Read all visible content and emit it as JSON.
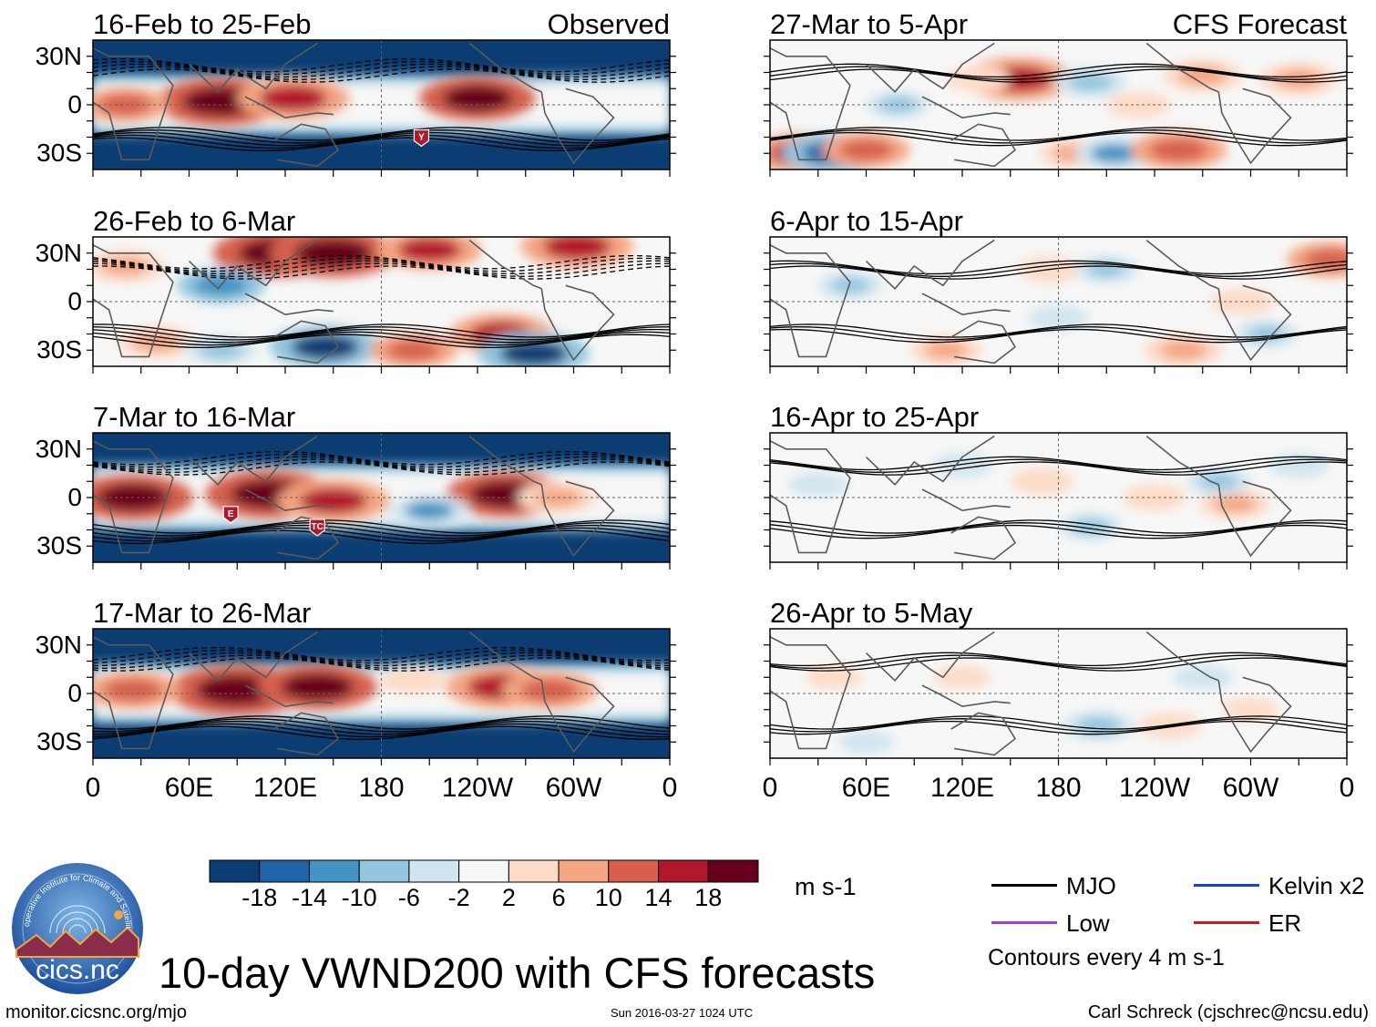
{
  "header": {
    "observed_label": "Observed",
    "forecast_label": "CFS Forecast"
  },
  "panels": {
    "observed": [
      {
        "title": "16-Feb to 25-Feb"
      },
      {
        "title": "26-Feb to 6-Mar"
      },
      {
        "title": "7-Mar to 16-Mar"
      },
      {
        "title": "17-Mar to 26-Mar"
      }
    ],
    "forecast": [
      {
        "title": "27-Mar to 5-Apr"
      },
      {
        "title": "6-Apr to 15-Apr"
      },
      {
        "title": "16-Apr to 25-Apr"
      },
      {
        "title": "26-Apr to 5-May"
      }
    ]
  },
  "axes": {
    "lat_ticks": [
      "30N",
      "0",
      "30S"
    ],
    "lon_ticks": [
      "0",
      "60E",
      "120E",
      "180",
      "120W",
      "60W",
      "0"
    ]
  },
  "markers": {
    "m1": "Y",
    "m2": "E",
    "m3": "TC"
  },
  "colorbar": {
    "labels": [
      "-18",
      "-14",
      "-10",
      "-6",
      "-2",
      "2",
      "6",
      "10",
      "14",
      "18"
    ],
    "colors": [
      "#0b3d73",
      "#1f63a8",
      "#4393c3",
      "#92c5de",
      "#d1e5f0",
      "#f7f7f7",
      "#fddbc7",
      "#f4a582",
      "#d6604d",
      "#b2182b",
      "#67001f"
    ],
    "units": "m s-1"
  },
  "legend": {
    "mjo": {
      "label": "MJO",
      "color": "#000000"
    },
    "kelvin": {
      "label": "Kelvin x2",
      "color": "#1f3fd0"
    },
    "low": {
      "label": "Low",
      "color": "#a040d8"
    },
    "er": {
      "label": "ER",
      "color": "#d01818"
    },
    "contour_note": "Contours every 4 m s-1"
  },
  "logo": {
    "text": "cics.nc",
    "ring_text": "Cooperative Institute for Climate and Satellites"
  },
  "title": "10-day VWND200 with CFS forecasts",
  "footer": {
    "url": "monitor.cicsnc.org/mjo",
    "date": "Sun 2016-03-27 1024 UTC",
    "author": "Carl Schreck (cjschrec@ncsu.edu)"
  },
  "chart_data": {
    "type": "heatmap",
    "variable": "200-hPa meridional wind (VWND200) anomaly, 10-day mean",
    "units": "m s-1",
    "x_range_lon": [
      0,
      360
    ],
    "y_range_lat": [
      -40,
      40
    ],
    "color_levels": [
      -18,
      -14,
      -10,
      -6,
      -2,
      2,
      6,
      10,
      14,
      18
    ],
    "panels": [
      {
        "title": "16-Feb to 25-Feb",
        "source": "Observed",
        "blobs": [
          {
            "lon": 80,
            "lat": 2,
            "value": 22
          },
          {
            "lon": 125,
            "lat": 4,
            "value": 18
          },
          {
            "lon": 240,
            "lat": 4,
            "value": 19
          },
          {
            "lon": 20,
            "lat": 0,
            "value": 12
          }
        ],
        "background": -20,
        "band_lat": [
          -14,
          14
        ]
      },
      {
        "title": "26-Feb to 6-Mar",
        "source": "Observed",
        "blobs": [
          {
            "lon": 115,
            "lat": 30,
            "value": 22
          },
          {
            "lon": 150,
            "lat": 30,
            "value": 22
          },
          {
            "lon": 210,
            "lat": 32,
            "value": 16
          },
          {
            "lon": 302,
            "lat": 34,
            "value": 18
          },
          {
            "lon": 145,
            "lat": -28,
            "value": -18
          },
          {
            "lon": 255,
            "lat": -20,
            "value": 16
          },
          {
            "lon": 275,
            "lat": -32,
            "value": -18
          },
          {
            "lon": 80,
            "lat": 10,
            "value": -12
          },
          {
            "lon": 40,
            "lat": -25,
            "value": 10
          },
          {
            "lon": 200,
            "lat": -30,
            "value": 12
          },
          {
            "lon": 20,
            "lat": 22,
            "value": 10
          },
          {
            "lon": 80,
            "lat": -30,
            "value": -8
          }
        ],
        "background": 0
      },
      {
        "title": "7-Mar to 16-Mar",
        "source": "Observed",
        "blobs": [
          {
            "lon": 25,
            "lat": 0,
            "value": 20
          },
          {
            "lon": 110,
            "lat": 2,
            "value": 22
          },
          {
            "lon": 150,
            "lat": -2,
            "value": 18
          },
          {
            "lon": 258,
            "lat": 2,
            "value": 20
          },
          {
            "lon": 210,
            "lat": -8,
            "value": -10
          },
          {
            "lon": 290,
            "lat": 0,
            "value": 10
          }
        ],
        "background": -20,
        "band_lat": [
          -16,
          16
        ]
      },
      {
        "title": "17-Mar to 26-Mar",
        "source": "Observed",
        "blobs": [
          {
            "lon": 90,
            "lat": 2,
            "value": 24
          },
          {
            "lon": 140,
            "lat": 4,
            "value": 20
          },
          {
            "lon": 25,
            "lat": 2,
            "value": 14
          },
          {
            "lon": 255,
            "lat": 4,
            "value": 18
          },
          {
            "lon": 285,
            "lat": 2,
            "value": 14
          },
          {
            "lon": 200,
            "lat": 8,
            "value": 6
          }
        ],
        "background": -20,
        "band_lat": [
          -14,
          14
        ]
      },
      {
        "title": "27-Mar to 5-Apr",
        "source": "CFS Forecast",
        "blobs": [
          {
            "lon": 155,
            "lat": 16,
            "value": 18
          },
          {
            "lon": 130,
            "lat": 16,
            "value": 6
          },
          {
            "lon": 200,
            "lat": 14,
            "value": -8
          },
          {
            "lon": 270,
            "lat": 18,
            "value": 10
          },
          {
            "lon": 330,
            "lat": 16,
            "value": 10
          },
          {
            "lon": 20,
            "lat": -30,
            "value": 16
          },
          {
            "lon": 40,
            "lat": -30,
            "value": -16
          },
          {
            "lon": 60,
            "lat": -28,
            "value": 12
          },
          {
            "lon": 190,
            "lat": -30,
            "value": 8
          },
          {
            "lon": 215,
            "lat": -30,
            "value": -10
          },
          {
            "lon": 255,
            "lat": -28,
            "value": 14
          },
          {
            "lon": 80,
            "lat": 0,
            "value": -6
          },
          {
            "lon": 230,
            "lat": 0,
            "value": 6
          }
        ],
        "background": 0
      },
      {
        "title": "6-Apr to 15-Apr",
        "source": "CFS Forecast",
        "blobs": [
          {
            "lon": 175,
            "lat": 20,
            "value": 6
          },
          {
            "lon": 210,
            "lat": 20,
            "value": -6
          },
          {
            "lon": 350,
            "lat": 26,
            "value": 12
          },
          {
            "lon": 295,
            "lat": 0,
            "value": 6
          },
          {
            "lon": 258,
            "lat": -30,
            "value": 10
          },
          {
            "lon": 110,
            "lat": -30,
            "value": 8
          },
          {
            "lon": 310,
            "lat": -20,
            "value": -6
          },
          {
            "lon": 50,
            "lat": 10,
            "value": -6
          },
          {
            "lon": 180,
            "lat": -10,
            "value": -5
          }
        ],
        "background": 0
      },
      {
        "title": "16-Apr to 25-Apr",
        "source": "CFS Forecast",
        "blobs": [
          {
            "lon": 170,
            "lat": 10,
            "value": 6
          },
          {
            "lon": 240,
            "lat": 0,
            "value": 6
          },
          {
            "lon": 290,
            "lat": -4,
            "value": 8
          },
          {
            "lon": 280,
            "lat": 10,
            "value": -6
          },
          {
            "lon": 200,
            "lat": -18,
            "value": -6
          },
          {
            "lon": 30,
            "lat": 8,
            "value": -5
          },
          {
            "lon": 120,
            "lat": 20,
            "value": -5
          },
          {
            "lon": 330,
            "lat": 20,
            "value": -5
          }
        ],
        "background": 0
      },
      {
        "title": "26-Apr to 5-May",
        "source": "CFS Forecast",
        "blobs": [
          {
            "lon": 205,
            "lat": -20,
            "value": -8
          },
          {
            "lon": 250,
            "lat": -20,
            "value": 6
          },
          {
            "lon": 270,
            "lat": 10,
            "value": -5
          },
          {
            "lon": 40,
            "lat": 10,
            "value": 4
          },
          {
            "lon": 120,
            "lat": 10,
            "value": 4
          },
          {
            "lon": 300,
            "lat": -10,
            "value": 4
          },
          {
            "lon": 60,
            "lat": -30,
            "value": -4
          }
        ],
        "background": 0
      }
    ]
  }
}
